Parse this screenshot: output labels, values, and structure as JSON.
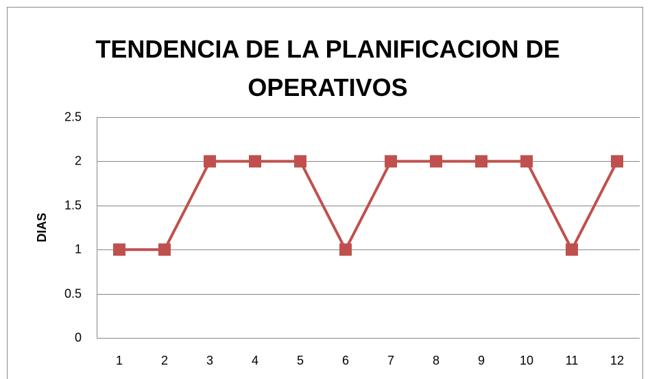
{
  "chart_data": {
    "type": "line",
    "title": "TENDENCIA DE LA PLANIFICACION DE OPERATIVOS",
    "y_label": "DIAS",
    "categories": [
      "1",
      "2",
      "3",
      "4",
      "5",
      "6",
      "7",
      "8",
      "9",
      "10",
      "11",
      "12"
    ],
    "series": [
      {
        "name": "DIAS",
        "color": "#c0504d",
        "values": [
          1,
          1,
          2,
          2,
          2,
          1,
          2,
          2,
          2,
          2,
          1,
          2
        ]
      }
    ],
    "ylim": [
      0,
      2.5
    ],
    "yticks": [
      0,
      0.5,
      1,
      1.5,
      2,
      2.5
    ],
    "grid": true,
    "legend": false
  }
}
